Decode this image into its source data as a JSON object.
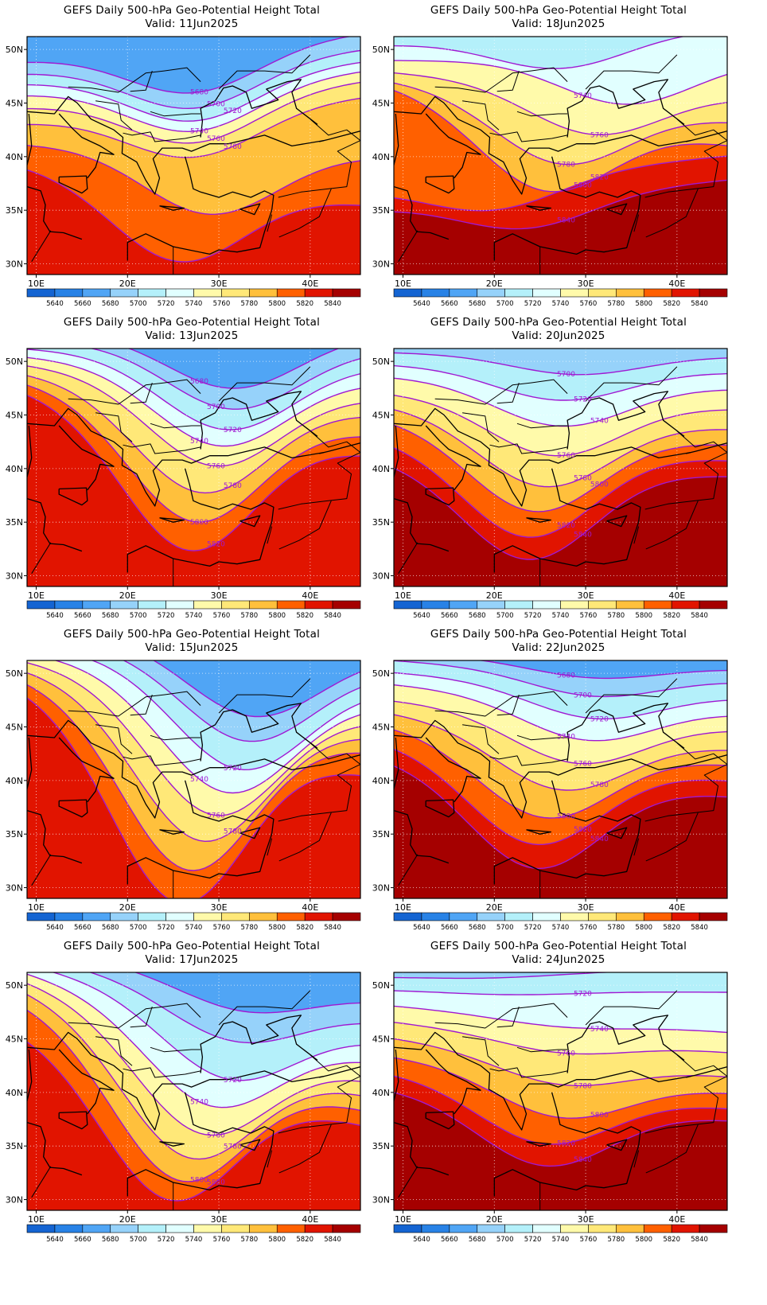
{
  "title": "GEFS Daily 500-hPa Geo-Potential Height Total",
  "axes": {
    "lon_ticks": [
      "10E",
      "20E",
      "30E",
      "40E"
    ],
    "lat_ticks": [
      "50N",
      "45N",
      "40N",
      "35N",
      "30N"
    ]
  },
  "colorbar": {
    "labels": [
      "5640",
      "5660",
      "5680",
      "5700",
      "5720",
      "5740",
      "5760",
      "5780",
      "5800",
      "5820",
      "5840"
    ],
    "colors": [
      "#1464d2",
      "#2882e6",
      "#50a5f5",
      "#96d2fa",
      "#b4f0fa",
      "#e1ffff",
      "#fffaaa",
      "#ffe878",
      "#ffc03c",
      "#ff6000",
      "#e11400",
      "#a50000"
    ]
  },
  "panels": [
    {
      "valid": "Valid: 11Jun2025",
      "contours": [
        {
          "value": "5680",
          "label": "5680",
          "yL": 30,
          "yR": -5,
          "dip": 58,
          "dipX": 0.5
        },
        {
          "value": "5700",
          "label": "5700",
          "yL": 45,
          "yR": 15,
          "dip": 60,
          "dipX": 0.5
        },
        {
          "value": "5720",
          "label": "5720",
          "yL": 58,
          "yR": 30,
          "dip": 62,
          "dipX": 0.5
        },
        {
          "value": "5740",
          "label": "5740",
          "yL": 72,
          "yR": 42,
          "dip": 62,
          "dipX": 0.5
        },
        {
          "value": "5760",
          "label": "5760",
          "yL": 88,
          "yR": 55,
          "dip": 62,
          "dipX": 0.5
        },
        {
          "value": "5780",
          "label": "5780",
          "yL": 108,
          "yR": 75,
          "dip": 60,
          "dipX": 0.5
        },
        {
          "value": "5800",
          "label": "",
          "yL": 135,
          "yR": 150,
          "dip": 80,
          "dipX": 0.55
        },
        {
          "value": "5820",
          "label": "",
          "yL": 160,
          "yR": 210,
          "dip": 100,
          "dipX": 0.45
        }
      ]
    },
    {
      "valid": "Valid: 18Jun2025",
      "contours": [
        {
          "value": "5720",
          "label": "",
          "yL": 10,
          "yR": -10,
          "dip": 40,
          "dipX": 0.5
        },
        {
          "value": "5740",
          "label": "5740",
          "yL": 30,
          "yR": 30,
          "dip": 55,
          "dipX": 0.7
        },
        {
          "value": "5760",
          "label": "5760",
          "yL": 45,
          "yR": 75,
          "dip": 60,
          "dipX": 0.6
        },
        {
          "value": "5780",
          "label": "5780",
          "yL": 55,
          "yR": 105,
          "dip": 80,
          "dipX": 0.5
        },
        {
          "value": "5800",
          "label": "5800",
          "yL": 60,
          "yR": 135,
          "dip": 100,
          "dipX": 0.45
        },
        {
          "value": "5820",
          "label": "5820",
          "yL": 190,
          "yR": 150,
          "dip": 40,
          "dipX": 0.3
        },
        {
          "value": "5840",
          "label": "5840",
          "yL": 215,
          "yR": 180,
          "dip": 40,
          "dipX": 0.4
        }
      ]
    },
    {
      "valid": "Valid: 13Jun2025",
      "contours": [
        {
          "value": "5680",
          "label": "5680",
          "yL": -20,
          "yR": -20,
          "dip": 70,
          "dipX": 0.62
        },
        {
          "value": "5700",
          "label": "5700",
          "yL": -10,
          "yR": 0,
          "dip": 80,
          "dipX": 0.62
        },
        {
          "value": "5720",
          "label": "5720",
          "yL": 0,
          "yR": 20,
          "dip": 90,
          "dipX": 0.6
        },
        {
          "value": "5740",
          "label": "5740",
          "yL": 10,
          "yR": 40,
          "dip": 95,
          "dipX": 0.58
        },
        {
          "value": "5760",
          "label": "5760",
          "yL": 20,
          "yR": 60,
          "dip": 105,
          "dipX": 0.56
        },
        {
          "value": "5780",
          "label": "5780",
          "yL": 30,
          "yR": 80,
          "dip": 125,
          "dipX": 0.52
        },
        {
          "value": "5800",
          "label": "5800",
          "yL": 40,
          "yR": 105,
          "dip": 145,
          "dipX": 0.5
        },
        {
          "value": "5820",
          "label": "5820",
          "yL": 50,
          "yR": 130,
          "dip": 165,
          "dipX": 0.48
        }
      ]
    },
    {
      "valid": "Valid: 20Jun2025",
      "contours": [
        {
          "value": "5700",
          "label": "5700",
          "yL": 5,
          "yR": 10,
          "dip": 25,
          "dipX": 0.55
        },
        {
          "value": "5720",
          "label": "5720",
          "yL": 20,
          "yR": 30,
          "dip": 40,
          "dipX": 0.5
        },
        {
          "value": "5740",
          "label": "5740",
          "yL": 35,
          "yR": 50,
          "dip": 55,
          "dipX": 0.5
        },
        {
          "value": "5760",
          "label": "5760",
          "yL": 55,
          "yR": 75,
          "dip": 70,
          "dipX": 0.48
        },
        {
          "value": "5780",
          "label": "5780",
          "yL": 70,
          "yR": 100,
          "dip": 90,
          "dipX": 0.45
        },
        {
          "value": "5800",
          "label": "5800",
          "yL": 85,
          "yR": 120,
          "dip": 105,
          "dipX": 0.42
        },
        {
          "value": "5820",
          "label": "5820",
          "yL": 110,
          "yR": 140,
          "dip": 115,
          "dipX": 0.4
        },
        {
          "value": "5840",
          "label": "5840",
          "yL": 135,
          "yR": 160,
          "dip": 120,
          "dipX": 0.4
        }
      ]
    },
    {
      "valid": "Valid: 15Jun2025",
      "contours": [
        {
          "value": "5680",
          "label": "",
          "yL": -40,
          "yR": -10,
          "dip": 90,
          "dipX": 0.68
        },
        {
          "value": "5700",
          "label": "",
          "yL": -30,
          "yR": 10,
          "dip": 105,
          "dipX": 0.66
        },
        {
          "value": "5720",
          "label": "5720",
          "yL": -20,
          "yR": 30,
          "dip": 125,
          "dipX": 0.64
        },
        {
          "value": "5740",
          "label": "5740",
          "yL": -10,
          "yR": 50,
          "dip": 140,
          "dipX": 0.6
        },
        {
          "value": "5760",
          "label": "5760",
          "yL": 0,
          "yR": 70,
          "dip": 155,
          "dipX": 0.56
        },
        {
          "value": "5780",
          "label": "5780",
          "yL": 10,
          "yR": 90,
          "dip": 175,
          "dipX": 0.52
        },
        {
          "value": "5800",
          "label": "",
          "yL": 20,
          "yR": 110,
          "dip": 200,
          "dipX": 0.48
        },
        {
          "value": "5820",
          "label": "",
          "yL": 30,
          "yR": 140,
          "dip": 225,
          "dipX": 0.45
        }
      ]
    },
    {
      "valid": "Valid: 22Jun2025",
      "contours": [
        {
          "value": "5680",
          "label": "5680",
          "yL": -10,
          "yR": 10,
          "dip": 20,
          "dipX": 0.6
        },
        {
          "value": "5700",
          "label": "5700",
          "yL": 0,
          "yR": 25,
          "dip": 30,
          "dipX": 0.6
        },
        {
          "value": "5720",
          "label": "5720",
          "yL": 15,
          "yR": 45,
          "dip": 40,
          "dipX": 0.6
        },
        {
          "value": "5740",
          "label": "5740",
          "yL": 30,
          "yR": 65,
          "dip": 50,
          "dipX": 0.58
        },
        {
          "value": "5760",
          "label": "5760",
          "yL": 50,
          "yR": 85,
          "dip": 60,
          "dipX": 0.55
        },
        {
          "value": "5780",
          "label": "5780",
          "yL": 65,
          "yR": 110,
          "dip": 75,
          "dipX": 0.5
        },
        {
          "value": "5800",
          "label": "5800",
          "yL": 80,
          "yR": 130,
          "dip": 95,
          "dipX": 0.45
        },
        {
          "value": "5820",
          "label": "5820",
          "yL": 100,
          "yR": 150,
          "dip": 110,
          "dipX": 0.42
        },
        {
          "value": "5840",
          "label": "5840",
          "yL": 120,
          "yR": 170,
          "dip": 120,
          "dipX": 0.42
        }
      ]
    },
    {
      "valid": "Valid: 17Jun2025",
      "contours": [
        {
          "value": "5680",
          "label": "",
          "yL": -30,
          "yR": 30,
          "dip": 40,
          "dipX": 0.65
        },
        {
          "value": "5700",
          "label": "",
          "yL": -20,
          "yR": 55,
          "dip": 60,
          "dipX": 0.62
        },
        {
          "value": "5720",
          "label": "5720",
          "yL": -10,
          "yR": 80,
          "dip": 90,
          "dipX": 0.6
        },
        {
          "value": "5740",
          "label": "5740",
          "yL": 0,
          "yR": 105,
          "dip": 110,
          "dipX": 0.55
        },
        {
          "value": "5760",
          "label": "5760",
          "yL": 10,
          "yR": 130,
          "dip": 130,
          "dipX": 0.52
        },
        {
          "value": "5780",
          "label": "5780",
          "yL": 20,
          "yR": 150,
          "dip": 150,
          "dipX": 0.48
        },
        {
          "value": "5800",
          "label": "5800",
          "yL": 35,
          "yR": 170,
          "dip": 165,
          "dipX": 0.45
        },
        {
          "value": "5820",
          "label": "5820",
          "yL": 70,
          "yR": 190,
          "dip": 165,
          "dipX": 0.42
        }
      ]
    },
    {
      "valid": "Valid: 24Jun2025",
      "contours": [
        {
          "value": "5700",
          "label": "5700",
          "yL": 5,
          "yR": -5,
          "dip": 5,
          "dipX": 0.3
        },
        {
          "value": "5720",
          "label": "5720",
          "yL": 22,
          "yR": 25,
          "dip": 5,
          "dipX": 0.35
        },
        {
          "value": "5740",
          "label": "5740",
          "yL": 42,
          "yR": 75,
          "dip": 10,
          "dipX": 0.5
        },
        {
          "value": "5760",
          "label": "5760",
          "yL": 62,
          "yR": 100,
          "dip": 20,
          "dipX": 0.5
        },
        {
          "value": "5780",
          "label": "5780",
          "yL": 82,
          "yR": 130,
          "dip": 35,
          "dipX": 0.5
        },
        {
          "value": "5800",
          "label": "5800",
          "yL": 105,
          "yR": 150,
          "dip": 55,
          "dipX": 0.5
        },
        {
          "value": "5820",
          "label": "5820",
          "yL": 125,
          "yR": 170,
          "dip": 70,
          "dipX": 0.45
        },
        {
          "value": "5840",
          "label": "5840",
          "yL": 145,
          "yR": 185,
          "dip": 80,
          "dipX": 0.45
        }
      ]
    }
  ]
}
